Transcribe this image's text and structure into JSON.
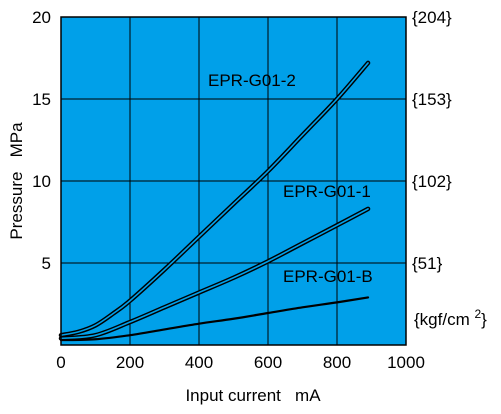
{
  "chart_data": {
    "type": "line",
    "xlabel": "Input current   mA",
    "ylabel": "Pressure   MPa",
    "xlim": [
      0,
      1000
    ],
    "ylim": [
      0,
      20
    ],
    "x_ticks": [
      "0",
      "200",
      "400",
      "600",
      "800",
      "1000"
    ],
    "y_ticks": [
      "5",
      "10",
      "15",
      "20"
    ],
    "y2_ticks": [
      "{51}",
      "{102}",
      "{153}",
      "{204}"
    ],
    "y2_unit": "{kgf/cm2}",
    "grid": true,
    "background_color": "#00a0e9",
    "line_color": "#000000",
    "series": [
      {
        "name": "EPR-G01-2",
        "style": "double",
        "x": [
          0,
          50,
          100,
          150,
          200,
          300,
          400,
          500,
          600,
          700,
          800,
          890
        ],
        "y": [
          0.6,
          0.8,
          1.2,
          1.9,
          2.7,
          4.6,
          6.6,
          8.6,
          10.6,
          12.8,
          15.0,
          17.2
        ]
      },
      {
        "name": "EPR-G01-1",
        "style": "double",
        "x": [
          0,
          100,
          200,
          300,
          400,
          500,
          600,
          700,
          800,
          890
        ],
        "y": [
          0.4,
          0.6,
          1.4,
          2.3,
          3.2,
          4.1,
          5.1,
          6.2,
          7.3,
          8.3
        ]
      },
      {
        "name": "EPR-G01-B",
        "style": "single",
        "x": [
          0,
          100,
          200,
          300,
          400,
          500,
          600,
          700,
          800,
          890
        ],
        "y": [
          0.3,
          0.35,
          0.6,
          0.95,
          1.3,
          1.6,
          1.95,
          2.3,
          2.6,
          2.9
        ]
      }
    ]
  }
}
